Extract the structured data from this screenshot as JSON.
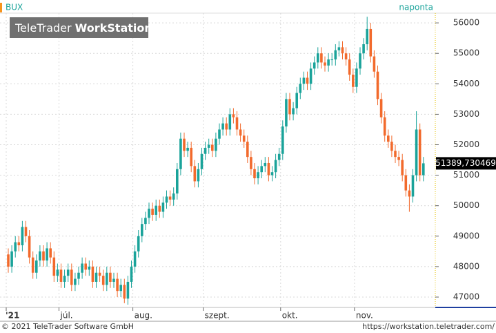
{
  "chart_data": {
    "type": "candlestick",
    "title": "BUX",
    "period": "naponta",
    "watermark": {
      "light": "TeleTrader",
      "bold": "WorkStation"
    },
    "footer_left": "© 2021 TeleTrader Software GmbH",
    "footer_right": "https://workstation.teletrader.com/",
    "up_color": "#1aa39a",
    "down_color": "#f26a2c",
    "grid": true,
    "ylim": [
      46660,
      56320
    ],
    "yticks": [
      47000,
      48000,
      49000,
      50000,
      51000,
      52000,
      53000,
      54000,
      55000,
      56000
    ],
    "last_value": {
      "value": 51389.730469,
      "label": "51389,730469"
    },
    "categories": [
      "'21",
      null,
      null,
      null,
      null,
      null,
      null,
      null,
      null,
      null,
      null,
      null,
      null,
      null,
      null,
      "júl.",
      null,
      null,
      null,
      null,
      null,
      null,
      null,
      null,
      null,
      null,
      null,
      null,
      null,
      null,
      null,
      null,
      null,
      null,
      null,
      null,
      "aug.",
      null,
      null,
      null,
      null,
      null,
      null,
      null,
      null,
      null,
      null,
      null,
      null,
      null,
      null,
      null,
      null,
      null,
      null,
      null,
      "szept.",
      null,
      null,
      null,
      null,
      null,
      null,
      null,
      null,
      null,
      null,
      null,
      null,
      null,
      null,
      null,
      null,
      null,
      null,
      null,
      null,
      null,
      "okt.",
      null,
      null,
      null,
      null,
      null,
      null,
      null,
      null,
      null,
      null,
      null,
      null,
      null,
      null,
      null,
      null,
      null,
      null,
      null,
      null,
      "nov.",
      null,
      null,
      null,
      null,
      null,
      null,
      null,
      null,
      null,
      null,
      null,
      null,
      null,
      null,
      null,
      null,
      null,
      null,
      null
    ],
    "open": [
      48400,
      48000,
      48500,
      48800,
      48700,
      49300,
      49000,
      48300,
      47800,
      48200,
      48500,
      48200,
      48600,
      48300,
      47700,
      47900,
      47500,
      47700,
      47900,
      47400,
      47600,
      47800,
      48100,
      47900,
      48000,
      47500,
      47800,
      47700,
      47400,
      47800,
      47500,
      47600,
      47200,
      47400,
      46950,
      47500,
      48000,
      48500,
      49000,
      49400,
      49600,
      49900,
      49700,
      50000,
      49800,
      50100,
      50300,
      50200,
      50400,
      51200,
      52200,
      51800,
      51900,
      51300,
      50800,
      51200,
      51700,
      51900,
      52000,
      51800,
      52200,
      52500,
      52700,
      52500,
      53000,
      52900,
      52500,
      52300,
      52100,
      51600,
      51200,
      50900,
      51100,
      51300,
      51400,
      51000,
      51100,
      51500,
      51700,
      52600,
      53500,
      53000,
      53200,
      53700,
      54000,
      54200,
      54000,
      54500,
      54700,
      55000,
      54700,
      54600,
      54800,
      54800,
      55100,
      55200,
      55000,
      54800,
      54300,
      53900,
      54500,
      55000,
      55300,
      55800,
      54900,
      54400,
      53500,
      52900,
      52300,
      52100,
      51800,
      51600,
      51500,
      51000,
      50500,
      50300,
      51000,
      52500,
      51000
    ],
    "high": [
      48600,
      48700,
      49000,
      49000,
      49500,
      49500,
      49200,
      48500,
      48400,
      48700,
      48700,
      48800,
      48800,
      48500,
      48100,
      48100,
      47900,
      48100,
      48100,
      47800,
      48000,
      48300,
      48300,
      48200,
      48200,
      48000,
      48000,
      47900,
      48000,
      48000,
      47800,
      47800,
      47600,
      47600,
      47700,
      48200,
      48700,
      49200,
      49600,
      49800,
      50100,
      50100,
      50200,
      50200,
      50300,
      50500,
      50500,
      50600,
      51400,
      52400,
      52400,
      52100,
      52100,
      51500,
      51400,
      51900,
      52100,
      52200,
      52200,
      52400,
      52700,
      52900,
      52900,
      53200,
      53200,
      53100,
      52700,
      52500,
      52300,
      51800,
      51400,
      51300,
      51500,
      51600,
      51600,
      51300,
      51700,
      51900,
      52800,
      53700,
      53700,
      53400,
      53900,
      54200,
      54400,
      54400,
      54700,
      54900,
      55200,
      55200,
      54900,
      55000,
      55000,
      55300,
      55400,
      55400,
      55200,
      55000,
      54500,
      54700,
      55200,
      55500,
      56200,
      56000,
      55100,
      54600,
      53700,
      53100,
      52500,
      52300,
      52000,
      51800,
      51700,
      51200,
      50700,
      51200,
      53100,
      52700,
      51600
    ],
    "low": [
      47800,
      47800,
      48300,
      48500,
      48500,
      48800,
      48100,
      47600,
      47600,
      48000,
      48000,
      48000,
      48100,
      47500,
      47500,
      47300,
      47300,
      47500,
      47200,
      47200,
      47400,
      47600,
      47700,
      47700,
      47300,
      47300,
      47500,
      47200,
      47200,
      47300,
      47300,
      47000,
      47000,
      46800,
      46750,
      47300,
      47800,
      48300,
      48800,
      49200,
      49400,
      49500,
      49500,
      49600,
      49600,
      49900,
      50000,
      50000,
      50200,
      51000,
      51600,
      51600,
      51100,
      50600,
      50600,
      51000,
      51500,
      51700,
      51600,
      51600,
      52000,
      52300,
      52300,
      52300,
      52700,
      52300,
      52100,
      51900,
      51400,
      51000,
      50700,
      50700,
      50900,
      51100,
      50800,
      50800,
      50900,
      51300,
      51500,
      52400,
      52800,
      52800,
      53000,
      53500,
      53800,
      53800,
      53800,
      54300,
      54500,
      54500,
      54400,
      54400,
      54600,
      54600,
      54900,
      54800,
      54600,
      54100,
      53700,
      53700,
      54300,
      54800,
      55100,
      54700,
      54200,
      53300,
      52700,
      52100,
      51900,
      51600,
      51400,
      51300,
      50800,
      50300,
      49800,
      50100,
      50800,
      50800,
      50800
    ],
    "close": [
      48000,
      48500,
      48800,
      48700,
      49300,
      49000,
      48300,
      47800,
      48200,
      48500,
      48200,
      48600,
      48300,
      47700,
      47900,
      47500,
      47700,
      47900,
      47400,
      47600,
      47800,
      48100,
      47900,
      48000,
      47500,
      47800,
      47700,
      47400,
      47800,
      47500,
      47600,
      47200,
      47400,
      46950,
      47500,
      48000,
      48500,
      49000,
      49400,
      49600,
      49900,
      49700,
      50000,
      49800,
      50100,
      50300,
      50200,
      50400,
      51200,
      52200,
      51800,
      51900,
      51300,
      50800,
      51200,
      51700,
      51900,
      52000,
      51800,
      52200,
      52500,
      52700,
      52500,
      53000,
      52900,
      52500,
      52300,
      52100,
      51600,
      51200,
      50900,
      51100,
      51300,
      51400,
      51000,
      51100,
      51500,
      51700,
      52600,
      53500,
      53000,
      53200,
      53700,
      54000,
      54200,
      54000,
      54500,
      54700,
      55000,
      54700,
      54600,
      54800,
      54800,
      55100,
      55200,
      55000,
      54800,
      54300,
      53900,
      54500,
      55000,
      55300,
      55800,
      54900,
      54400,
      53500,
      52900,
      52300,
      52100,
      51800,
      51600,
      51500,
      51000,
      50500,
      50300,
      51000,
      52500,
      51000,
      51390
    ]
  }
}
